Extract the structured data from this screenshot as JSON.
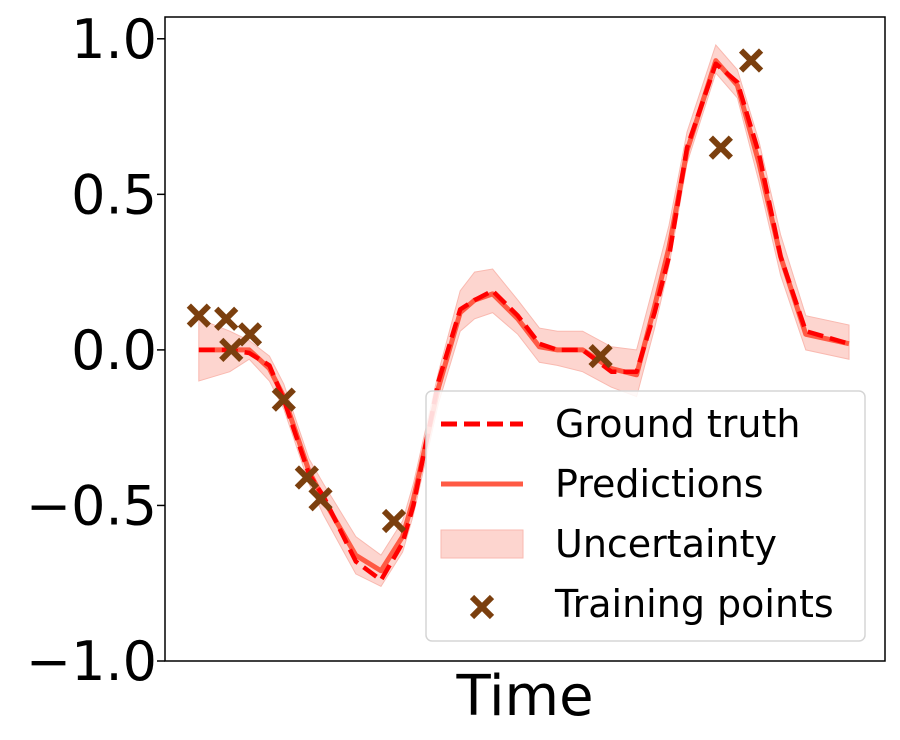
{
  "chart_data": {
    "type": "line",
    "title": "",
    "xlabel": "Time",
    "ylabel": "",
    "ylim": [
      -1.0,
      1.07
    ],
    "xlim": [
      0,
      1
    ],
    "yticks": [
      -1.0,
      -0.5,
      0.0,
      0.5,
      1.0
    ],
    "ytick_labels": [
      "−1.0",
      "−0.5",
      "0.0",
      "0.5",
      "1.0"
    ],
    "xticks_shown": false,
    "grid": false,
    "legend_placement": "lower-right",
    "series": [
      {
        "name": "Ground truth",
        "kind": "line",
        "style": "dashed",
        "color": "#ff0000",
        "x": [
          0.047,
          0.09,
          0.117,
          0.145,
          0.165,
          0.2,
          0.22,
          0.265,
          0.3,
          0.33,
          0.345,
          0.38,
          0.41,
          0.43,
          0.455,
          0.49,
          0.52,
          0.545,
          0.58,
          0.62,
          0.655,
          0.68,
          0.7,
          0.725,
          0.765,
          0.795,
          0.825,
          0.855,
          0.89,
          0.95
        ],
        "y": [
          0.0,
          0.0,
          -0.01,
          -0.05,
          -0.16,
          -0.4,
          -0.47,
          -0.68,
          -0.74,
          -0.62,
          -0.5,
          -0.1,
          0.13,
          0.16,
          0.19,
          0.11,
          0.02,
          0.0,
          0.0,
          -0.07,
          -0.07,
          0.12,
          0.3,
          0.65,
          0.92,
          0.86,
          0.63,
          0.3,
          0.06,
          0.02
        ]
      },
      {
        "name": "Predictions",
        "kind": "line",
        "style": "solid",
        "color": "#ff5a44",
        "x": [
          0.047,
          0.09,
          0.117,
          0.145,
          0.165,
          0.2,
          0.22,
          0.265,
          0.3,
          0.33,
          0.345,
          0.38,
          0.41,
          0.43,
          0.455,
          0.49,
          0.52,
          0.545,
          0.58,
          0.62,
          0.655,
          0.68,
          0.7,
          0.725,
          0.765,
          0.795,
          0.825,
          0.855,
          0.89,
          0.95
        ],
        "y": [
          0.0,
          0.0,
          0.0,
          -0.06,
          -0.15,
          -0.39,
          -0.48,
          -0.66,
          -0.71,
          -0.6,
          -0.48,
          -0.12,
          0.12,
          0.16,
          0.18,
          0.1,
          0.01,
          0.0,
          0.0,
          -0.06,
          -0.08,
          0.14,
          0.33,
          0.64,
          0.93,
          0.85,
          0.6,
          0.3,
          0.05,
          0.02
        ]
      },
      {
        "name": "Uncertainty",
        "kind": "band",
        "color": "#fdd5cf",
        "x": [
          0.047,
          0.09,
          0.117,
          0.145,
          0.165,
          0.2,
          0.22,
          0.265,
          0.3,
          0.33,
          0.345,
          0.38,
          0.41,
          0.43,
          0.455,
          0.49,
          0.52,
          0.545,
          0.58,
          0.62,
          0.655,
          0.68,
          0.7,
          0.725,
          0.765,
          0.795,
          0.825,
          0.855,
          0.89,
          0.95
        ],
        "lower": [
          -0.1,
          -0.07,
          -0.03,
          -0.1,
          -0.19,
          -0.43,
          -0.53,
          -0.72,
          -0.76,
          -0.65,
          -0.53,
          -0.17,
          0.06,
          0.1,
          0.12,
          0.05,
          -0.04,
          -0.05,
          -0.07,
          -0.12,
          -0.15,
          0.07,
          0.27,
          0.6,
          0.89,
          0.81,
          0.54,
          0.24,
          0.0,
          -0.03
        ],
        "upper": [
          0.1,
          0.06,
          0.03,
          -0.02,
          -0.11,
          -0.35,
          -0.43,
          -0.6,
          -0.66,
          -0.55,
          -0.43,
          -0.07,
          0.19,
          0.25,
          0.26,
          0.16,
          0.07,
          0.06,
          0.06,
          0.01,
          0.0,
          0.22,
          0.4,
          0.7,
          0.98,
          0.9,
          0.67,
          0.37,
          0.11,
          0.08
        ]
      },
      {
        "name": "Training points",
        "kind": "scatter",
        "marker": "x",
        "color": "#7b3f0e",
        "x": [
          0.047,
          0.085,
          0.092,
          0.118,
          0.165,
          0.197,
          0.216,
          0.318,
          0.605,
          0.772,
          0.814
        ],
        "y": [
          0.11,
          0.1,
          0.0,
          0.05,
          -0.16,
          -0.41,
          -0.48,
          -0.55,
          -0.02,
          0.65,
          0.93
        ]
      }
    ],
    "legend": [
      {
        "label": "Ground truth",
        "symbol": "dashed-line"
      },
      {
        "label": "Predictions",
        "symbol": "solid-line"
      },
      {
        "label": "Uncertainty",
        "symbol": "patch"
      },
      {
        "label": "Training points",
        "symbol": "x-marker"
      }
    ]
  }
}
